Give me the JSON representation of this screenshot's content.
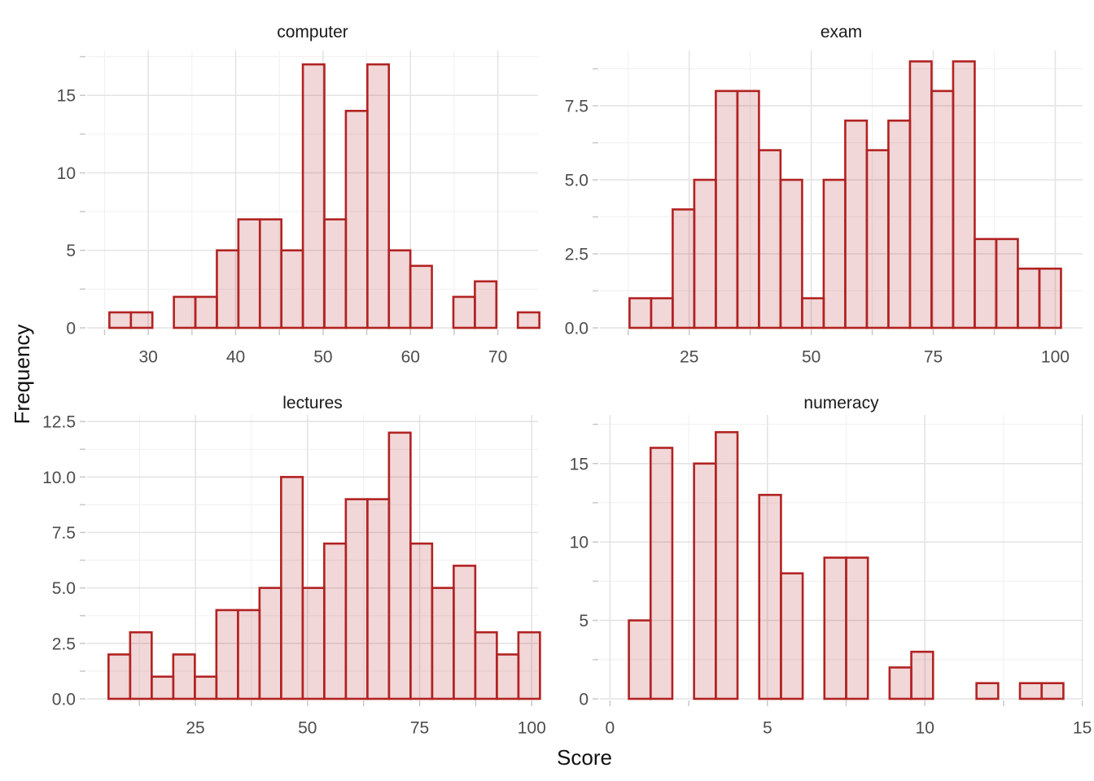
{
  "figure": {
    "x_axis_title": "Score",
    "y_axis_title": "Frequency",
    "background": "#ffffff",
    "bar_fill": "rgba(178,34,34,0.18)",
    "bar_stroke": "#b22222",
    "grid_major_color": "#e4e4e4",
    "grid_minor_color": "#f1f1f1",
    "tick_mark_color": "#c9c9c9",
    "tick_label_color": "#4d4d4d",
    "title_color": "#1a1a1a"
  },
  "chart_data": [
    {
      "type": "bar",
      "subtype": "histogram",
      "title": "computer",
      "xlabel": "Score",
      "ylabel": "Frequency",
      "bin_start": 25.55,
      "bin_width": 2.46,
      "counts": [
        1,
        1,
        0,
        2,
        2,
        5,
        7,
        7,
        5,
        17,
        7,
        14,
        17,
        5,
        4,
        0,
        2,
        3,
        0,
        1
      ],
      "x_ticks": [
        30,
        40,
        50,
        60,
        70
      ],
      "y_ticks": [
        0,
        5,
        10,
        15
      ],
      "x_domain": [
        23.0,
        74.6
      ],
      "y_domain": [
        0,
        17.9
      ],
      "y_decimals": 0,
      "grid": true,
      "legend": false
    },
    {
      "type": "bar",
      "subtype": "histogram",
      "title": "exam",
      "xlabel": "Score",
      "ylabel": "Frequency",
      "bin_start": 12.77,
      "bin_width": 4.42,
      "counts": [
        1,
        1,
        4,
        5,
        8,
        8,
        6,
        5,
        1,
        5,
        7,
        6,
        7,
        9,
        8,
        9,
        3,
        3,
        2,
        2
      ],
      "x_ticks": [
        25,
        50,
        75,
        100
      ],
      "y_ticks": [
        0,
        2.5,
        5,
        7.5
      ],
      "x_domain": [
        6.7,
        105.6
      ],
      "y_domain": [
        0,
        9.37
      ],
      "y_decimals": 1,
      "grid": true,
      "legend": false
    },
    {
      "type": "bar",
      "subtype": "histogram",
      "title": "lectures",
      "xlabel": "Score",
      "ylabel": "Frequency",
      "bin_start": 5.63,
      "bin_width": 4.81,
      "counts": [
        2,
        3,
        1,
        2,
        1,
        4,
        4,
        5,
        10,
        5,
        7,
        9,
        9,
        12,
        7,
        5,
        6,
        3,
        2,
        3
      ],
      "x_ticks": [
        25,
        50,
        75,
        100
      ],
      "y_ticks": [
        0,
        2.5,
        5,
        7.5,
        10,
        12.5
      ],
      "x_domain": [
        0.85,
        101.4
      ],
      "y_domain": [
        0,
        12.8
      ],
      "y_decimals": 1,
      "grid": true,
      "legend": false
    },
    {
      "type": "bar",
      "subtype": "histogram",
      "title": "numeracy",
      "xlabel": "Score",
      "ylabel": "Frequency",
      "bin_start": 0.6,
      "bin_width": 0.69,
      "counts": [
        5,
        16,
        0,
        15,
        17,
        0,
        13,
        8,
        0,
        9,
        9,
        0,
        2,
        3,
        0,
        0,
        1,
        0,
        1,
        1
      ],
      "x_ticks": [
        0,
        5,
        10,
        15
      ],
      "y_ticks": [
        0,
        5,
        10,
        15
      ],
      "x_domain": [
        -0.32,
        15.01
      ],
      "y_domain": [
        0,
        18.1
      ],
      "y_decimals": 0,
      "grid": true,
      "legend": false
    }
  ]
}
